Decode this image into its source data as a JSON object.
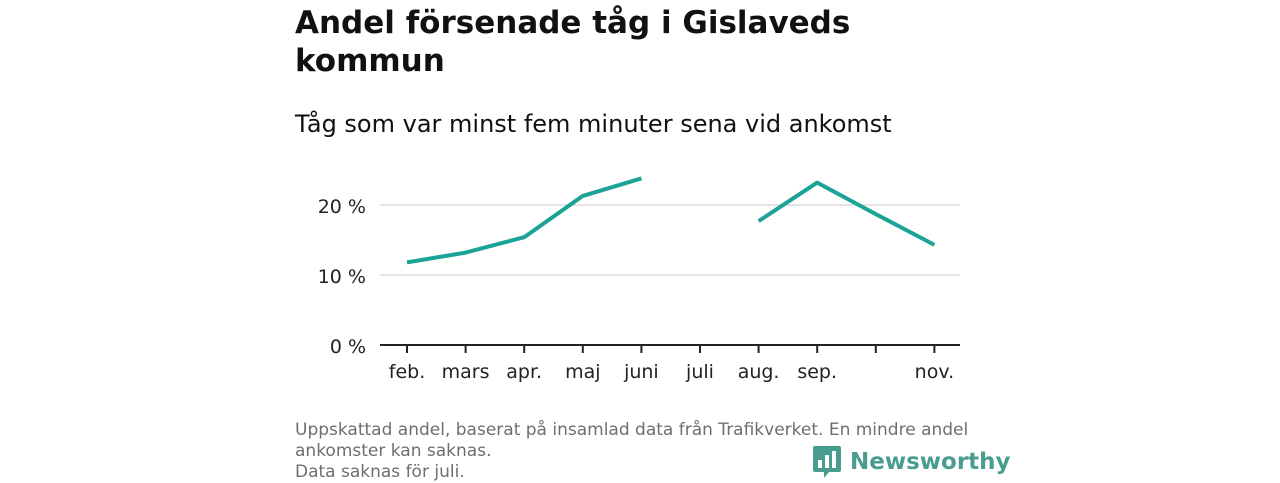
{
  "title": "Andel försenade tåg i Gislaveds kommun",
  "subtitle": "Tåg som var minst fem minuter sena vid ankomst",
  "footnote": {
    "line1": "Uppskattad andel, baserat på insamlad data från Trafikverket. En mindre andel ankomster kan saknas.",
    "line2": "Data saknas för juli."
  },
  "brand": {
    "name": "Newsworthy",
    "icon": "newsworthy-logo-icon",
    "color": "#4a9c8f"
  },
  "chart_data": {
    "type": "line",
    "categories": [
      "feb.",
      "mars",
      "apr.",
      "maj",
      "juni",
      "juli",
      "aug.",
      "sep.",
      "",
      "nov."
    ],
    "series": [
      {
        "values": [
          11.8,
          13.2,
          15.4,
          21.3,
          23.8,
          null,
          17.7,
          23.2,
          18.7,
          14.3
        ],
        "color": "#1aa396"
      }
    ],
    "yticks": [
      {
        "value": 0,
        "label": "0 %"
      },
      {
        "value": 10,
        "label": "10 %"
      },
      {
        "value": 20,
        "label": "20 %"
      }
    ],
    "ylim": [
      0,
      25
    ],
    "grid": true,
    "xlabel": "",
    "ylabel": ""
  }
}
